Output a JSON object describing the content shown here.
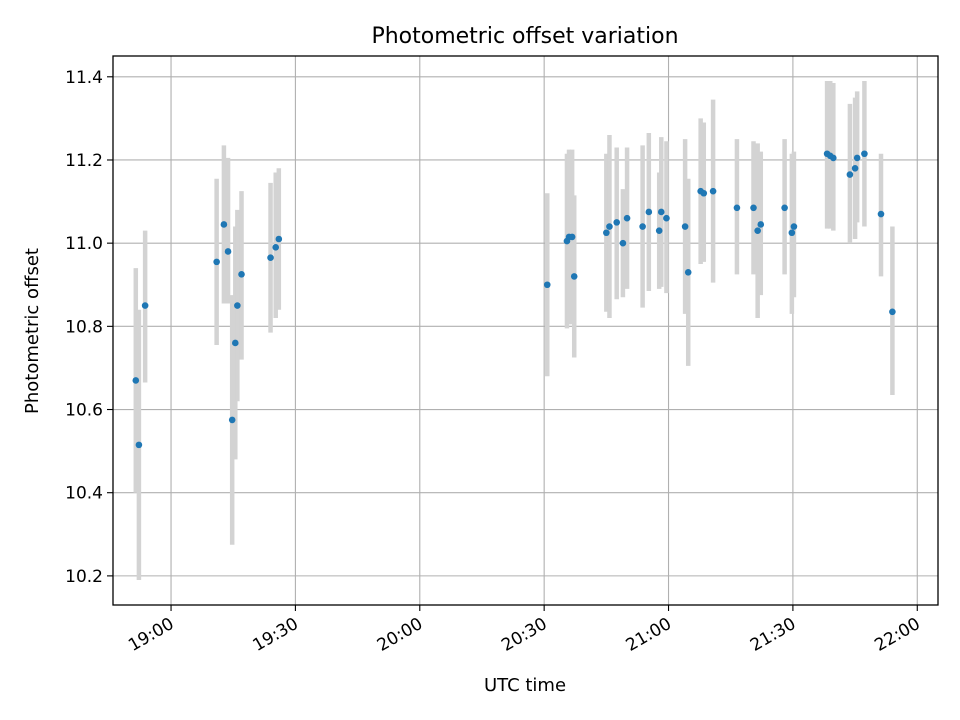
{
  "chart_data": {
    "type": "scatter",
    "title": "Photometric offset variation",
    "xlabel": "UTC time",
    "ylabel": "Photometric offset",
    "grid": true,
    "x_ticks": [
      "19:00",
      "19:30",
      "20:00",
      "20:30",
      "21:00",
      "21:30",
      "22:00"
    ],
    "y_ticks": [
      "10.2",
      "10.4",
      "10.6",
      "10.8",
      "11.0",
      "11.2",
      "11.4"
    ],
    "xlim": [
      "18:53",
      "22:03"
    ],
    "ylim": [
      10.13,
      11.45
    ],
    "colors": {
      "point": "#1f77b4",
      "errorbar": "#d3d3d3",
      "grid": "#b0b0b0"
    },
    "series": [
      {
        "points": [
          {
            "t": "18:51:30",
            "y": 10.67,
            "lo": 10.4,
            "hi": 10.94
          },
          {
            "t": "18:52:15",
            "y": 10.515,
            "lo": 10.19,
            "hi": 10.84
          },
          {
            "t": "18:53:45",
            "y": 10.85,
            "lo": 10.665,
            "hi": 11.03
          },
          {
            "t": "19:11:00",
            "y": 10.955,
            "lo": 10.755,
            "hi": 11.155
          },
          {
            "t": "19:12:45",
            "y": 11.045,
            "lo": 10.855,
            "hi": 11.235
          },
          {
            "t": "19:13:45",
            "y": 10.98,
            "lo": 10.855,
            "hi": 11.205
          },
          {
            "t": "19:14:45",
            "y": 10.575,
            "lo": 10.275,
            "hi": 10.875
          },
          {
            "t": "19:15:30",
            "y": 10.76,
            "lo": 10.48,
            "hi": 11.04
          },
          {
            "t": "19:16:00",
            "y": 10.85,
            "lo": 10.62,
            "hi": 11.08
          },
          {
            "t": "19:17:00",
            "y": 10.925,
            "lo": 10.72,
            "hi": 11.125
          },
          {
            "t": "19:24:00",
            "y": 10.965,
            "lo": 10.785,
            "hi": 11.145
          },
          {
            "t": "19:25:15",
            "y": 10.99,
            "lo": 10.82,
            "hi": 11.17
          },
          {
            "t": "19:26:00",
            "y": 11.01,
            "lo": 10.84,
            "hi": 11.18
          },
          {
            "t": "20:30:45",
            "y": 10.9,
            "lo": 10.68,
            "hi": 11.12
          },
          {
            "t": "20:35:30",
            "y": 11.005,
            "lo": 10.795,
            "hi": 11.215
          },
          {
            "t": "20:36:00",
            "y": 11.015,
            "lo": 10.805,
            "hi": 11.225
          },
          {
            "t": "20:36:45",
            "y": 11.015,
            "lo": 10.805,
            "hi": 11.225
          },
          {
            "t": "20:37:15",
            "y": 10.92,
            "lo": 10.725,
            "hi": 11.115
          },
          {
            "t": "20:45:00",
            "y": 11.025,
            "lo": 10.835,
            "hi": 11.215
          },
          {
            "t": "20:45:45",
            "y": 11.04,
            "lo": 10.82,
            "hi": 11.26
          },
          {
            "t": "20:47:30",
            "y": 11.05,
            "lo": 10.865,
            "hi": 11.23
          },
          {
            "t": "20:49:00",
            "y": 11.0,
            "lo": 10.87,
            "hi": 11.13
          },
          {
            "t": "20:50:00",
            "y": 11.06,
            "lo": 10.89,
            "hi": 11.23
          },
          {
            "t": "20:53:45",
            "y": 11.04,
            "lo": 10.845,
            "hi": 11.235
          },
          {
            "t": "20:55:15",
            "y": 11.075,
            "lo": 10.885,
            "hi": 11.265
          },
          {
            "t": "20:57:45",
            "y": 11.03,
            "lo": 10.89,
            "hi": 11.17
          },
          {
            "t": "20:58:15",
            "y": 11.075,
            "lo": 10.895,
            "hi": 11.255
          },
          {
            "t": "20:59:30",
            "y": 11.06,
            "lo": 10.88,
            "hi": 11.245
          },
          {
            "t": "21:04:00",
            "y": 11.04,
            "lo": 10.83,
            "hi": 11.25
          },
          {
            "t": "21:04:45",
            "y": 10.93,
            "lo": 10.705,
            "hi": 11.155
          },
          {
            "t": "21:07:45",
            "y": 11.125,
            "lo": 10.95,
            "hi": 11.3
          },
          {
            "t": "21:08:30",
            "y": 11.12,
            "lo": 10.955,
            "hi": 11.29
          },
          {
            "t": "21:10:45",
            "y": 11.125,
            "lo": 10.905,
            "hi": 11.345
          },
          {
            "t": "21:16:30",
            "y": 11.085,
            "lo": 10.925,
            "hi": 11.25
          },
          {
            "t": "21:20:30",
            "y": 11.085,
            "lo": 10.925,
            "hi": 11.245
          },
          {
            "t": "21:21:30",
            "y": 11.03,
            "lo": 10.82,
            "hi": 11.24
          },
          {
            "t": "21:22:15",
            "y": 11.045,
            "lo": 10.875,
            "hi": 11.22
          },
          {
            "t": "21:28:00",
            "y": 11.085,
            "lo": 10.925,
            "hi": 11.25
          },
          {
            "t": "21:29:45",
            "y": 11.025,
            "lo": 10.83,
            "hi": 11.215
          },
          {
            "t": "21:30:15",
            "y": 11.04,
            "lo": 10.87,
            "hi": 11.22
          },
          {
            "t": "21:38:15",
            "y": 11.215,
            "lo": 11.035,
            "hi": 11.39
          },
          {
            "t": "21:39:00",
            "y": 11.21,
            "lo": 11.035,
            "hi": 11.39
          },
          {
            "t": "21:39:45",
            "y": 11.205,
            "lo": 11.03,
            "hi": 11.385
          },
          {
            "t": "21:43:45",
            "y": 11.165,
            "lo": 11.0,
            "hi": 11.335
          },
          {
            "t": "21:45:00",
            "y": 11.18,
            "lo": 11.01,
            "hi": 11.35
          },
          {
            "t": "21:45:30",
            "y": 11.205,
            "lo": 11.05,
            "hi": 11.365
          },
          {
            "t": "21:47:15",
            "y": 11.215,
            "lo": 11.04,
            "hi": 11.39
          },
          {
            "t": "21:51:15",
            "y": 11.07,
            "lo": 10.92,
            "hi": 11.215
          },
          {
            "t": "21:54:00",
            "y": 10.835,
            "lo": 10.635,
            "hi": 11.04
          }
        ]
      }
    ]
  }
}
